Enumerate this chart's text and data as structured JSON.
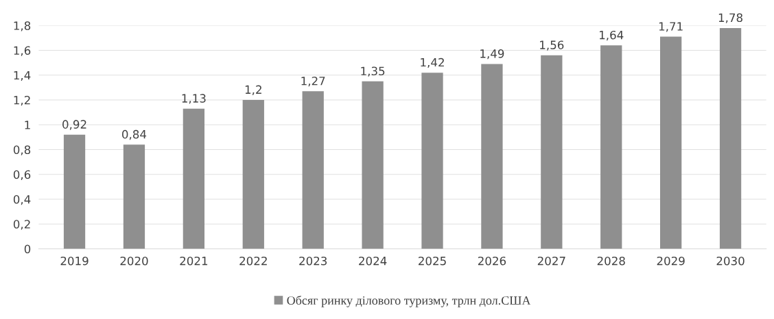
{
  "chart_data": {
    "type": "bar",
    "categories": [
      "2019",
      "2020",
      "2021",
      "2022",
      "2023",
      "2024",
      "2025",
      "2026",
      "2027",
      "2028",
      "2029",
      "2030"
    ],
    "series": [
      {
        "name": "Обсяг ринку ділового туризму, трлн дол.США",
        "color": "#8f8f8f",
        "values": [
          0.92,
          0.84,
          1.13,
          1.2,
          1.27,
          1.35,
          1.42,
          1.49,
          1.56,
          1.64,
          1.71,
          1.78
        ],
        "value_labels": [
          "0,92",
          "0,84",
          "1,13",
          "1,2",
          "1,27",
          "1,35",
          "1,42",
          "1,49",
          "1,56",
          "1,64",
          "1,71",
          "1,78"
        ]
      }
    ],
    "ylim": [
      0,
      1.8
    ],
    "yticks": [
      0,
      {
        "value": 0.2,
        "label": "0,2"
      },
      {
        "value": 0.4,
        "label": "0,4"
      },
      {
        "value": 0.6,
        "label": "0,6"
      },
      {
        "value": 0.8,
        "label": "0,8"
      },
      1,
      {
        "value": 1.2,
        "label": "1,2"
      },
      {
        "value": 1.4,
        "label": "1,4"
      },
      {
        "value": 1.6,
        "label": "1,6"
      },
      {
        "value": 1.8,
        "label": "1,8"
      }
    ],
    "grid": "y",
    "legend": "bottom"
  }
}
